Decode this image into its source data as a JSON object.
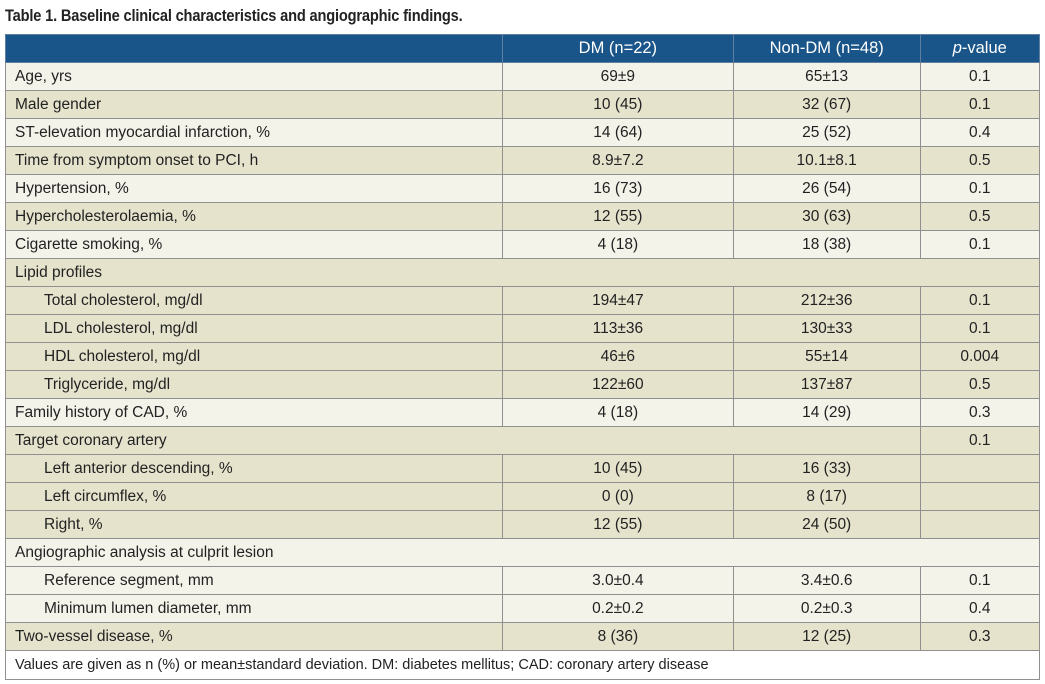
{
  "title": "Table 1.  Baseline clinical characteristics and angiographic findings.",
  "headers": {
    "label": "",
    "dm": "DM (n=22)",
    "nondm": "Non-DM (n=48)",
    "p_prefix": "p",
    "p_suffix": "-value"
  },
  "rows": [
    {
      "label": "Age, yrs",
      "dm": "69±9",
      "nondm": "65±13",
      "p": "0.1",
      "shade": "light"
    },
    {
      "label": "Male gender",
      "dm": "10 (45)",
      "nondm": "32 (67)",
      "p": "0.1",
      "shade": "tan"
    },
    {
      "label": "ST-elevation myocardial infarction, %",
      "dm": "14 (64)",
      "nondm": "25 (52)",
      "p": "0.4",
      "shade": "light"
    },
    {
      "label": "Time from symptom onset to PCI, h",
      "dm": "8.9±7.2",
      "nondm": "10.1±8.1",
      "p": "0.5",
      "shade": "tan"
    },
    {
      "label": "Hypertension, %",
      "dm": "16 (73)",
      "nondm": "26 (54)",
      "p": "0.1",
      "shade": "light"
    },
    {
      "label": "Hypercholesterolaemia, %",
      "dm": "12 (55)",
      "nondm": "30 (63)",
      "p": "0.5",
      "shade": "tan"
    },
    {
      "label": "Cigarette smoking, %",
      "dm": "4 (18)",
      "nondm": "18 (38)",
      "p": "0.1",
      "shade": "light"
    },
    {
      "label": "Lipid profiles",
      "type": "section",
      "shade": "tan"
    },
    {
      "label": "Total cholesterol, mg/dl",
      "dm": "194±47",
      "nondm": "212±36",
      "p": "0.1",
      "shade": "tan",
      "indent": true
    },
    {
      "label": "LDL cholesterol, mg/dl",
      "dm": "113±36",
      "nondm": "130±33",
      "p": "0.1",
      "shade": "tan",
      "indent": true
    },
    {
      "label": "HDL cholesterol, mg/dl",
      "dm": "46±6",
      "nondm": "55±14",
      "p": "0.004",
      "shade": "tan",
      "indent": true
    },
    {
      "label": "Triglyceride, mg/dl",
      "dm": "122±60",
      "nondm": "137±87",
      "p": "0.5",
      "shade": "tan",
      "indent": true
    },
    {
      "label": "Family history of CAD, %",
      "dm": "4 (18)",
      "nondm": "14 (29)",
      "p": "0.3",
      "shade": "light"
    },
    {
      "label": "Target coronary artery",
      "type": "section-p",
      "p": "0.1",
      "shade": "tan"
    },
    {
      "label": "Left anterior descending, %",
      "dm": "10 (45)",
      "nondm": "16 (33)",
      "p": "",
      "shade": "tan",
      "indent": true
    },
    {
      "label": "Left circumflex, %",
      "dm": "0 (0)",
      "nondm": "8 (17)",
      "p": "",
      "shade": "tan",
      "indent": true
    },
    {
      "label": "Right, %",
      "dm": "12 (55)",
      "nondm": "24 (50)",
      "p": "",
      "shade": "tan",
      "indent": true
    },
    {
      "label": "Angiographic analysis at culprit lesion",
      "type": "section",
      "shade": "light"
    },
    {
      "label": "Reference segment, mm",
      "dm": "3.0±0.4",
      "nondm": "3.4±0.6",
      "p": "0.1",
      "shade": "light",
      "indent": true
    },
    {
      "label": "Minimum lumen diameter, mm",
      "dm": "0.2±0.2",
      "nondm": "0.2±0.3",
      "p": "0.4",
      "shade": "light",
      "indent": true
    },
    {
      "label": "Two-vessel disease, %",
      "dm": "8 (36)",
      "nondm": "12 (25)",
      "p": "0.3",
      "shade": "tan"
    }
  ],
  "footnote": "Values are given as n (%) or mean±standard deviation. DM: diabetes mellitus; CAD: coronary artery disease",
  "colors": {
    "header": "#1a5589",
    "row_light": "#f4f3ea",
    "row_tan": "#e6e3cd"
  }
}
